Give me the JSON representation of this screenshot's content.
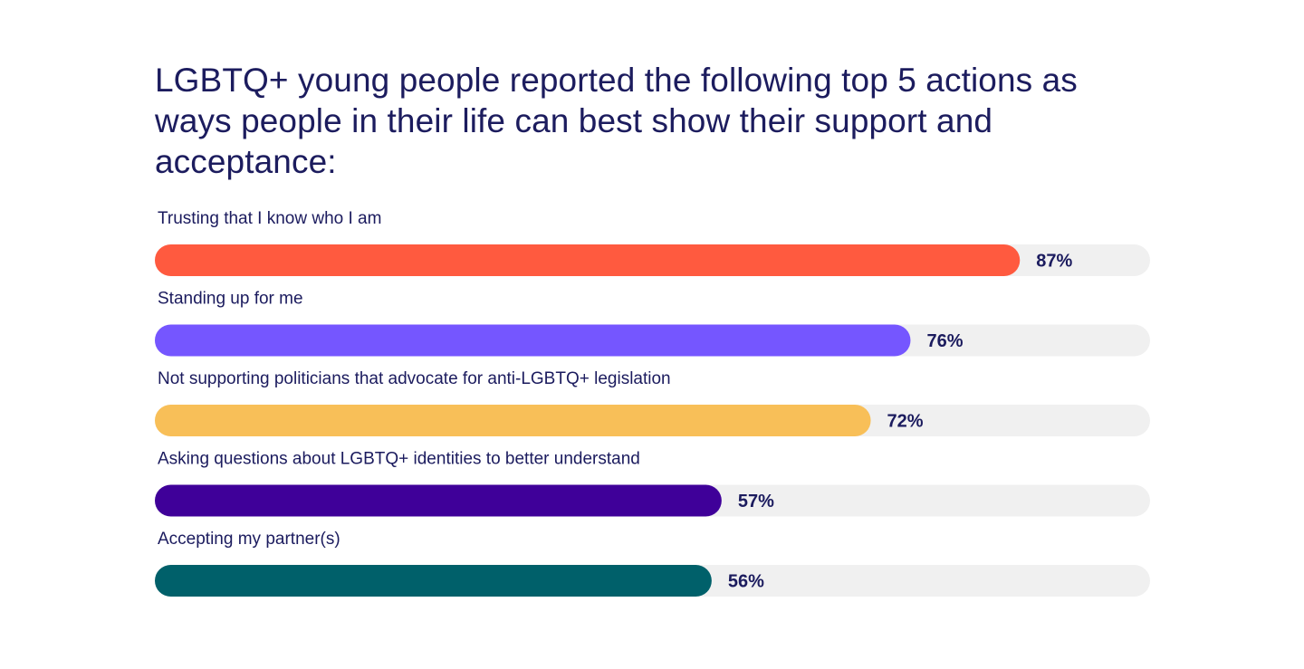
{
  "chart_data": {
    "type": "bar",
    "orientation": "horizontal",
    "title": "LGBTQ+ young people reported the following top 5 actions as ways people in their life can best show their support and acceptance:",
    "categories": [
      "Trusting that I know who I am",
      "Standing up for me",
      "Not supporting politicians that advocate for anti-LGBTQ+ legislation",
      "Asking questions about LGBTQ+ identities to better understand",
      "Accepting my partner(s)"
    ],
    "values": [
      87,
      76,
      72,
      57,
      56
    ],
    "value_labels": [
      "87%",
      "76%",
      "72%",
      "57%",
      "56%"
    ],
    "colors": [
      "#ff5a3f",
      "#7556ff",
      "#f8bf58",
      "#3f0099",
      "#00606a"
    ],
    "track_color": "#f0f0f0",
    "xlim": [
      0,
      100
    ],
    "grid": false,
    "legend": "none"
  }
}
